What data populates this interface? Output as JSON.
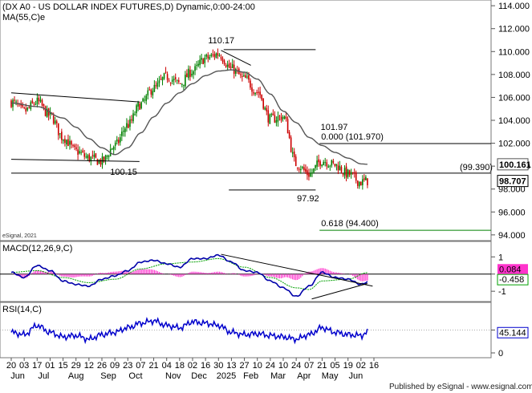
{
  "chart_data": {
    "type": "candlestick",
    "title": "(DX A0 - US DOLLAR INDEX FUTURES,D) Dynamic,0:00-24:00",
    "ma_label": "MA(55,C)e",
    "copyright": "eSignal, 2021",
    "footer": "Published by eSignal - www.esignal.com",
    "colors": {
      "up": "#008000",
      "down": "#cc0000",
      "ma": "#555555",
      "macd": "#0000aa",
      "signal": "#00a000",
      "hist": "#ff33cc",
      "rsi": "#0000cc",
      "fib": "#008000"
    },
    "price_axis": {
      "ylim": [
        93.5,
        114.5
      ],
      "ticks": [
        94,
        96,
        98,
        100,
        102,
        104,
        106,
        108,
        110,
        112,
        114
      ],
      "tick_labels": [
        "94.000",
        "96.000",
        "98.000",
        "100.000",
        "102.000",
        "104.000",
        "106.000",
        "108.000",
        "110.000",
        "112.000",
        "114.000"
      ]
    },
    "x_axis": {
      "days": [
        "20",
        "03",
        "17",
        "01",
        "15",
        "29",
        "12",
        "26",
        "09",
        "23",
        "07",
        "21",
        "04",
        "18",
        "02",
        "16",
        "30",
        "13",
        "27",
        "10",
        "24",
        "10",
        "24",
        "07",
        "21",
        "05",
        "19",
        "02",
        "16"
      ],
      "months": [
        {
          "label": "Jun",
          "day_index": 0.5
        },
        {
          "label": "Jul",
          "day_index": 2.5
        },
        {
          "label": "Aug",
          "day_index": 5
        },
        {
          "label": "Sep",
          "day_index": 7.5
        },
        {
          "label": "Oct",
          "day_index": 9.6
        },
        {
          "label": "Nov",
          "day_index": 12.5
        },
        {
          "label": "Dec",
          "day_index": 14.5
        },
        {
          "label": "2025",
          "day_index": 16.6
        },
        {
          "label": "Feb",
          "day_index": 18.5
        },
        {
          "label": "Mar",
          "day_index": 20.6
        },
        {
          "label": "Apr",
          "day_index": 22.6
        },
        {
          "label": "May",
          "day_index": 24.6
        },
        {
          "label": "Jun",
          "day_index": 26.6
        }
      ]
    },
    "price_keypoints": [
      [
        0,
        105.6
      ],
      [
        1,
        104.8
      ],
      [
        2,
        105.6
      ],
      [
        3,
        104.4
      ],
      [
        4,
        102.5
      ],
      [
        5,
        101.3
      ],
      [
        6,
        100.7
      ],
      [
        7,
        100.4
      ],
      [
        8,
        101.8
      ],
      [
        9,
        103.6
      ],
      [
        10,
        105.4
      ],
      [
        11,
        106.8
      ],
      [
        12,
        107.8
      ],
      [
        13,
        107.2
      ],
      [
        14,
        108.3
      ],
      [
        15,
        109.4
      ],
      [
        16,
        109.8
      ],
      [
        17,
        108.5
      ],
      [
        18,
        107.6
      ],
      [
        19,
        106.5
      ],
      [
        20,
        104.1
      ],
      [
        21,
        104.3
      ],
      [
        22,
        100.2
      ],
      [
        23,
        99.3
      ],
      [
        24,
        100.5
      ],
      [
        25,
        100.1
      ],
      [
        26,
        99.3
      ],
      [
        27,
        98.6
      ],
      [
        27.5,
        98.707
      ]
    ],
    "ma_keypoints": [
      [
        0,
        105.5
      ],
      [
        2,
        105.2
      ],
      [
        4,
        104.2
      ],
      [
        5,
        103.4
      ],
      [
        6,
        102.4
      ],
      [
        7,
        101.6
      ],
      [
        8,
        101.0
      ],
      [
        9,
        101.6
      ],
      [
        10,
        102.9
      ],
      [
        11,
        104.3
      ],
      [
        12,
        105.5
      ],
      [
        13,
        106.4
      ],
      [
        14,
        107.2
      ],
      [
        15,
        107.9
      ],
      [
        16,
        108.3
      ],
      [
        17,
        108.4
      ],
      [
        18,
        108.2
      ],
      [
        19,
        107.6
      ],
      [
        20,
        106.3
      ],
      [
        21,
        104.8
      ],
      [
        22,
        103.8
      ],
      [
        23,
        102.5
      ],
      [
        24,
        101.8
      ],
      [
        25,
        101.2
      ],
      [
        26,
        100.7
      ],
      [
        27,
        100.2
      ],
      [
        27.5,
        100.161
      ]
    ],
    "price_levels": [
      {
        "label": "110.17",
        "value": 110.17,
        "from": 16.4,
        "to": 23.5
      },
      {
        "label": "0.000 (101.970)",
        "value": 101.97,
        "from": 23.8,
        "to": 28
      },
      {
        "label": "(99.390)",
        "value": 99.39,
        "from": 0,
        "to": 28
      },
      {
        "label": "97.92",
        "value": 97.92,
        "from": 16.8,
        "to": 23.5
      },
      {
        "label": "0.618 (94.400)",
        "value": 94.4,
        "from": 23.8,
        "to": 28
      }
    ],
    "swing_labels": [
      {
        "text": "110.17",
        "day_index": 16.4,
        "value": 110.17
      },
      {
        "text": "101.97",
        "day_index": 24.5,
        "value": 101.97
      },
      {
        "text": "100.15",
        "day_index": 8.8,
        "value": 100.15
      },
      {
        "text": "97.92",
        "day_index": 23.1,
        "value": 97.92
      }
    ],
    "trendlines": [
      {
        "points": [
          [
            0,
            106.4
          ],
          [
            9.9,
            105.6
          ]
        ]
      },
      {
        "points": [
          [
            0,
            100.6
          ],
          [
            9.9,
            100.4
          ]
        ]
      },
      {
        "points": [
          [
            16.2,
            110.1
          ],
          [
            18.5,
            108.8
          ]
        ]
      }
    ],
    "last_values": {
      "ma": "100.161",
      "price": "98.707"
    },
    "macd": {
      "label": "MACD(12,26,9,C)",
      "ylim": [
        -1.6,
        1.9
      ],
      "ticks": [
        1,
        0,
        -1
      ],
      "tick_labels": [
        "1",
        "0",
        "-1"
      ],
      "last_signal": "0.084",
      "last_macd": "-0.458",
      "macd_keypoints": [
        [
          0,
          0.1
        ],
        [
          1,
          -0.2
        ],
        [
          2,
          0.5
        ],
        [
          3,
          0.2
        ],
        [
          4,
          -0.4
        ],
        [
          5,
          -0.6
        ],
        [
          6,
          -0.7
        ],
        [
          7,
          -0.3
        ],
        [
          8,
          -0.1
        ],
        [
          9,
          0.2
        ],
        [
          10,
          0.7
        ],
        [
          11,
          0.8
        ],
        [
          12,
          0.6
        ],
        [
          13,
          0.4
        ],
        [
          14,
          0.9
        ],
        [
          15,
          0.9
        ],
        [
          16,
          1.1
        ],
        [
          17,
          0.7
        ],
        [
          18,
          0.2
        ],
        [
          19,
          0.1
        ],
        [
          20,
          -0.4
        ],
        [
          21,
          -0.8
        ],
        [
          22,
          -1.3
        ],
        [
          23,
          -0.7
        ],
        [
          24,
          0.1
        ],
        [
          25,
          -0.2
        ],
        [
          26,
          -0.3
        ],
        [
          27,
          -0.6
        ],
        [
          27.5,
          -0.458
        ]
      ],
      "signal_keypoints": [
        [
          0,
          0.1
        ],
        [
          2,
          0.2
        ],
        [
          4,
          -0.2
        ],
        [
          6,
          -0.5
        ],
        [
          8,
          -0.3
        ],
        [
          10,
          0.3
        ],
        [
          12,
          0.6
        ],
        [
          14,
          0.7
        ],
        [
          16,
          0.9
        ],
        [
          18,
          0.4
        ],
        [
          20,
          -0.2
        ],
        [
          22,
          -0.8
        ],
        [
          23,
          -0.9
        ],
        [
          24,
          -0.4
        ],
        [
          26,
          -0.3
        ],
        [
          27.5,
          0.084
        ]
      ],
      "trendlines": [
        {
          "points": [
            [
              16.2,
              1.15
            ],
            [
              27.9,
              -0.7
            ]
          ]
        },
        {
          "points": [
            [
              23.2,
              -1.45
            ],
            [
              27.5,
              -0.55
            ]
          ]
        }
      ]
    },
    "rsi": {
      "label": "RSI(14,C)",
      "ylim": [
        0,
        100
      ],
      "ticks": [
        50,
        0
      ],
      "tick_labels": [
        "50",
        "0"
      ],
      "last_value": "45.144",
      "rsi_keypoints": [
        [
          0,
          45
        ],
        [
          1,
          40
        ],
        [
          2,
          60
        ],
        [
          3,
          45
        ],
        [
          4,
          35
        ],
        [
          5,
          38
        ],
        [
          6,
          30
        ],
        [
          7,
          40
        ],
        [
          8,
          45
        ],
        [
          9,
          55
        ],
        [
          10,
          65
        ],
        [
          11,
          70
        ],
        [
          12,
          60
        ],
        [
          13,
          55
        ],
        [
          14,
          68
        ],
        [
          15,
          65
        ],
        [
          16,
          60
        ],
        [
          17,
          45
        ],
        [
          18,
          40
        ],
        [
          19,
          42
        ],
        [
          20,
          38
        ],
        [
          21,
          35
        ],
        [
          22,
          30
        ],
        [
          23,
          40
        ],
        [
          24,
          55
        ],
        [
          25,
          45
        ],
        [
          26,
          40
        ],
        [
          27,
          38
        ],
        [
          27.5,
          45.144
        ]
      ]
    }
  }
}
